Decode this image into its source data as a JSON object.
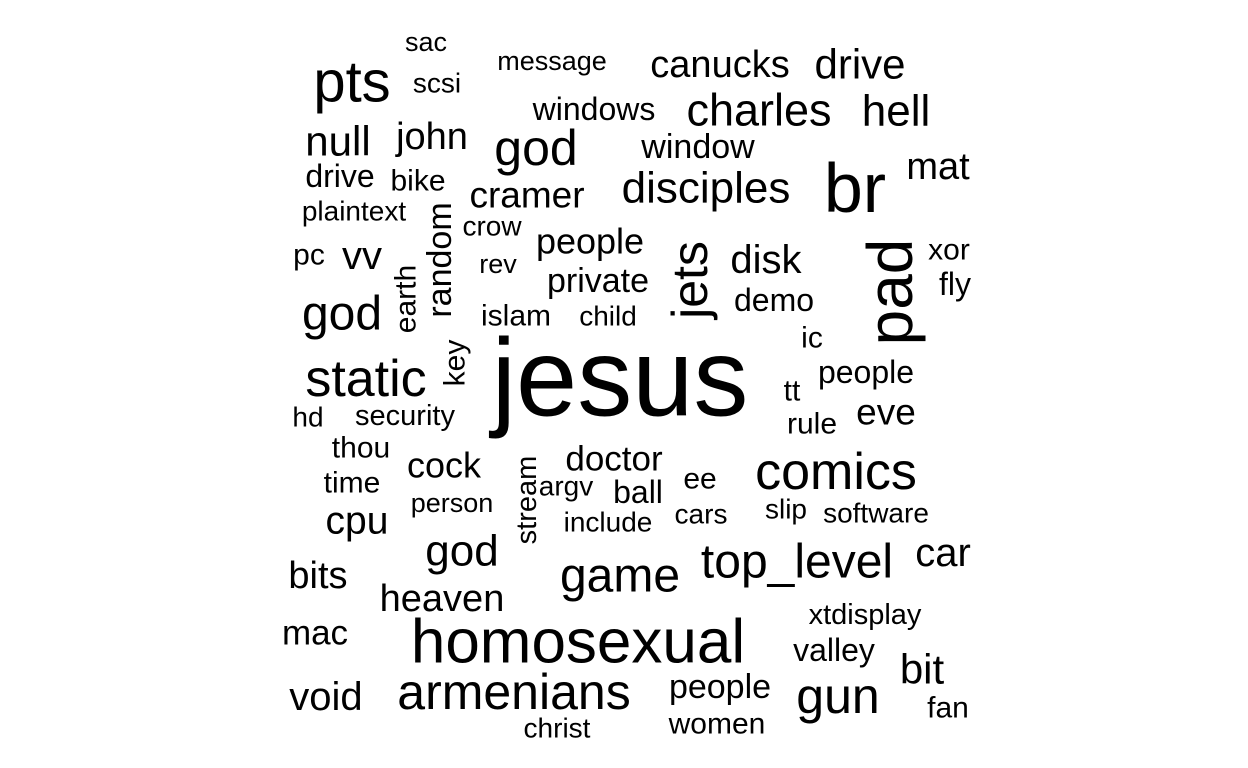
{
  "chart_data": {
    "type": "wordcloud",
    "words": [
      {
        "text": "jesus",
        "weight": 100
      },
      {
        "text": "br",
        "weight": 72
      },
      {
        "text": "homosexual",
        "weight": 64
      },
      {
        "text": "pad",
        "weight": 60
      },
      {
        "text": "pts",
        "weight": 56
      },
      {
        "text": "comics",
        "weight": 54
      },
      {
        "text": "static",
        "weight": 52
      },
      {
        "text": "armenians",
        "weight": 52
      },
      {
        "text": "jets",
        "weight": 52
      },
      {
        "text": "gun",
        "weight": 52
      },
      {
        "text": "god",
        "weight": 50
      },
      {
        "text": "god",
        "weight": 48
      },
      {
        "text": "game",
        "weight": 48
      },
      {
        "text": "top_level",
        "weight": 48
      },
      {
        "text": "charles",
        "weight": 45
      },
      {
        "text": "disciples",
        "weight": 44
      },
      {
        "text": "god",
        "weight": 44
      },
      {
        "text": "hell",
        "weight": 44
      },
      {
        "text": "null",
        "weight": 42
      },
      {
        "text": "bit",
        "weight": 42
      },
      {
        "text": "drive",
        "weight": 42
      },
      {
        "text": "car",
        "weight": 40
      },
      {
        "text": "disk",
        "weight": 40
      },
      {
        "text": "vv",
        "weight": 40
      },
      {
        "text": "void",
        "weight": 40
      },
      {
        "text": "cpu",
        "weight": 39
      },
      {
        "text": "canucks",
        "weight": 38
      },
      {
        "text": "mat",
        "weight": 38
      },
      {
        "text": "bits",
        "weight": 38
      },
      {
        "text": "heaven",
        "weight": 38
      },
      {
        "text": "john",
        "weight": 38
      },
      {
        "text": "eve",
        "weight": 37
      },
      {
        "text": "cramer",
        "weight": 37
      },
      {
        "text": "cock",
        "weight": 36
      },
      {
        "text": "people",
        "weight": 36
      },
      {
        "text": "doctor",
        "weight": 35
      },
      {
        "text": "mac",
        "weight": 35
      },
      {
        "text": "window",
        "weight": 34
      },
      {
        "text": "private",
        "weight": 34
      },
      {
        "text": "people",
        "weight": 34
      },
      {
        "text": "random",
        "weight": 34
      },
      {
        "text": "valley",
        "weight": 32
      },
      {
        "text": "windows",
        "weight": 32
      },
      {
        "text": "ball",
        "weight": 32
      },
      {
        "text": "demo",
        "weight": 32
      },
      {
        "text": "people",
        "weight": 32
      },
      {
        "text": "drive",
        "weight": 32
      },
      {
        "text": "fly",
        "weight": 32
      },
      {
        "text": "xor",
        "weight": 30
      },
      {
        "text": "rule",
        "weight": 30
      },
      {
        "text": "fan",
        "weight": 30
      },
      {
        "text": "islam",
        "weight": 30
      },
      {
        "text": "women",
        "weight": 30
      },
      {
        "text": "pc",
        "weight": 30
      },
      {
        "text": "key",
        "weight": 30
      },
      {
        "text": "time",
        "weight": 30
      },
      {
        "text": "thou",
        "weight": 30
      },
      {
        "text": "bike",
        "weight": 30
      },
      {
        "text": "ee",
        "weight": 30
      },
      {
        "text": "tt",
        "weight": 30
      },
      {
        "text": "earth",
        "weight": 30
      },
      {
        "text": "ic",
        "weight": 30
      },
      {
        "text": "stream",
        "weight": 29
      },
      {
        "text": "security",
        "weight": 29
      },
      {
        "text": "xtdisplay",
        "weight": 29
      },
      {
        "text": "include",
        "weight": 28
      },
      {
        "text": "software",
        "weight": 28
      },
      {
        "text": "child",
        "weight": 28
      },
      {
        "text": "hd",
        "weight": 28
      },
      {
        "text": "christ",
        "weight": 28
      },
      {
        "text": "slip",
        "weight": 28
      },
      {
        "text": "plaintext",
        "weight": 28
      },
      {
        "text": "cars",
        "weight": 28
      },
      {
        "text": "crow",
        "weight": 28
      },
      {
        "text": "argv",
        "weight": 28
      },
      {
        "text": "scsi",
        "weight": 28
      },
      {
        "text": "rev",
        "weight": 27
      },
      {
        "text": "person",
        "weight": 27
      },
      {
        "text": "message",
        "weight": 27
      },
      {
        "text": "sac",
        "weight": 27
      }
    ]
  }
}
